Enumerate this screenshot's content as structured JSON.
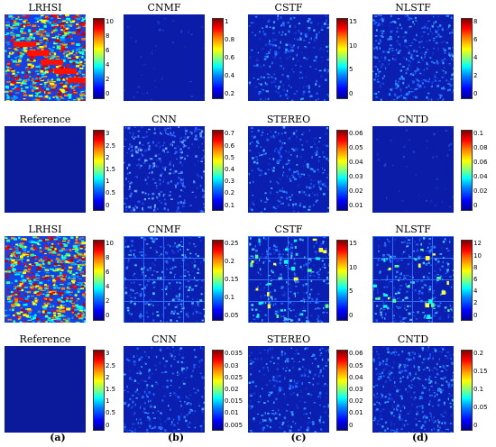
{
  "panels": [
    {
      "title": "LRHSI",
      "ticks": [
        "0",
        "2",
        "4",
        "6",
        "8",
        "10"
      ],
      "style": "hot"
    },
    {
      "title": "CNMF",
      "ticks": [
        "0.2",
        "0.4",
        "0.6",
        "0.8",
        "1"
      ],
      "style": "dark"
    },
    {
      "title": "CSTF",
      "ticks": [
        "0",
        "5",
        "10",
        "15"
      ],
      "style": "noise"
    },
    {
      "title": "NLSTF",
      "ticks": [
        "0",
        "2",
        "4",
        "6",
        "8"
      ],
      "style": "noise2"
    },
    {
      "title": "Reference",
      "ticks": [
        "0",
        "0.5",
        "1",
        "1.5",
        "2",
        "2.5",
        "3"
      ],
      "style": "flat"
    },
    {
      "title": "CNN",
      "ticks": [
        "0.1",
        "0.2",
        "0.3",
        "0.4",
        "0.5",
        "0.6",
        "0.7"
      ],
      "style": "struct"
    },
    {
      "title": "STEREO",
      "ticks": [
        "0.01",
        "0.02",
        "0.03",
        "0.04",
        "0.05",
        "0.06"
      ],
      "style": "noise"
    },
    {
      "title": "CNTD",
      "ticks": [
        "0",
        "0.02",
        "0.04",
        "0.06",
        "0.08",
        "0.1"
      ],
      "style": "dark"
    },
    {
      "title": "LRHSI",
      "ticks": [
        "0",
        "2",
        "4",
        "6",
        "8",
        "10"
      ],
      "style": "hot2"
    },
    {
      "title": "CNMF",
      "ticks": [
        "0.05",
        "0.1",
        "0.15",
        "0.2",
        "0.25"
      ],
      "style": "grid"
    },
    {
      "title": "CSTF",
      "ticks": [
        "0",
        "5",
        "10",
        "15"
      ],
      "style": "grid2"
    },
    {
      "title": "NLSTF",
      "ticks": [
        "0",
        "2",
        "4",
        "6",
        "8",
        "10",
        "12"
      ],
      "style": "grid2"
    },
    {
      "title": "Reference",
      "ticks": [
        "0",
        "0.5",
        "1",
        "1.5",
        "2",
        "2.5",
        "3"
      ],
      "style": "flat"
    },
    {
      "title": "CNN",
      "ticks": [
        "0.005",
        "0.01",
        "0.015",
        "0.02",
        "0.025",
        "0.03",
        "0.035"
      ],
      "style": "noise"
    },
    {
      "title": "STEREO",
      "ticks": [
        "0",
        "0.01",
        "0.02",
        "0.03",
        "0.04",
        "0.05",
        "0.06"
      ],
      "style": "noise"
    },
    {
      "title": "CNTD",
      "ticks": [
        "0",
        "0.05",
        "0.1",
        "0.15",
        "0.2"
      ],
      "style": "noise2"
    }
  ],
  "column_labels": [
    "(a)",
    "(b)",
    "(c)",
    "(d)"
  ]
}
